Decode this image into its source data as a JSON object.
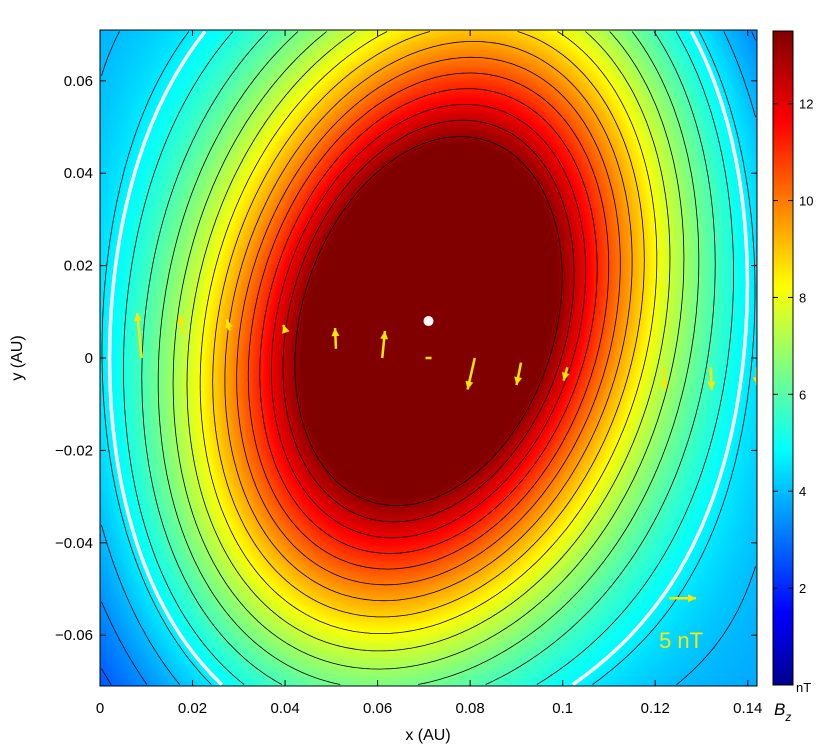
{
  "chart_data": {
    "type": "heatmap",
    "title": "",
    "xlabel": "x (AU)",
    "ylabel": "y (AU)",
    "xlim": [
      0,
      0.142
    ],
    "ylim": [
      -0.071,
      0.071
    ],
    "x_ticks": [
      0,
      0.02,
      0.04,
      0.06,
      0.08,
      0.1,
      0.12,
      0.14
    ],
    "x_tick_labels": [
      "0",
      "0.02",
      "0.04",
      "0.06",
      "0.08",
      "0.1",
      "0.12",
      "0.14"
    ],
    "y_ticks": [
      0.06,
      0.04,
      0.02,
      0,
      -0.02,
      -0.04,
      -0.06
    ],
    "y_tick_labels": [
      "0.06",
      "0.04",
      "0.02",
      "0",
      "−0.02",
      "−0.04",
      "−0.06"
    ],
    "colorbar": {
      "label": "B",
      "label_subscript": "z",
      "unit": "nT",
      "range": [
        0,
        13.5
      ],
      "ticks": [
        2,
        4,
        6,
        8,
        10,
        12
      ],
      "tick_labels": [
        "2",
        "4",
        "6",
        "8",
        "10",
        "12"
      ],
      "colormap": "jet"
    },
    "field_maximum": {
      "x": 0.071,
      "y": 0.008,
      "value": 13.3
    },
    "transverse_field_vectors": [
      {
        "x": 0.009,
        "y": 0.0,
        "bx": -0.5,
        "by": 5.0
      },
      {
        "x": 0.018,
        "y": 0.005,
        "bx": -0.4,
        "by": 2.2
      },
      {
        "x": 0.028,
        "y": 0.006,
        "bx": -0.3,
        "by": 1.2
      },
      {
        "x": 0.04,
        "y": 0.006,
        "bx": -0.2,
        "by": 0.6
      },
      {
        "x": 0.051,
        "y": 0.002,
        "bx": -0.1,
        "by": 2.3
      },
      {
        "x": 0.061,
        "y": 0.0,
        "bx": 0.3,
        "by": 3.0
      },
      {
        "x": 0.071,
        "y": 0.0,
        "bx": 0.0,
        "by": 0.0
      },
      {
        "x": 0.081,
        "y": 0.0,
        "bx": -0.8,
        "by": -3.5
      },
      {
        "x": 0.091,
        "y": -0.001,
        "bx": -0.5,
        "by": -2.5
      },
      {
        "x": 0.101,
        "y": -0.002,
        "bx": -0.4,
        "by": -1.5
      },
      {
        "x": 0.122,
        "y": -0.002,
        "bx": 0.0,
        "by": -2.5
      },
      {
        "x": 0.132,
        "y": -0.002,
        "bx": 0.1,
        "by": -2.5
      },
      {
        "x": 0.142,
        "y": -0.002,
        "bx": 0.0,
        "by": -2.0
      }
    ],
    "scale_arrow": {
      "x": 0.123,
      "y": -0.052,
      "bx": 5,
      "by": 0,
      "label": "5 nT"
    }
  }
}
